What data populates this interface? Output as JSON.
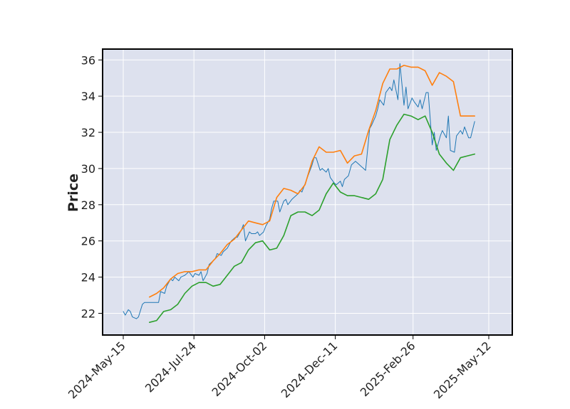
{
  "chart_data": {
    "type": "line",
    "title": "",
    "xlabel": "",
    "ylabel": "Price",
    "x_tick_labels": [
      "2024-May-15",
      "2024-Jul-24",
      "2024-Oct-02",
      "2024-Dec-11",
      "2025-Feb-26",
      "2025-May-12"
    ],
    "ylim": [
      20.8,
      36.6
    ],
    "y_ticks": [
      22,
      24,
      26,
      28,
      30,
      32,
      34,
      36
    ],
    "grid": true,
    "legend": "none",
    "plot_background": "#dde1ee",
    "series": [
      {
        "color": "#1f77b4",
        "stroke_width": 1,
        "points": [
          [
            "2024-05-15",
            22.1
          ],
          [
            "2024-05-17",
            21.9
          ],
          [
            "2024-05-20",
            22.2
          ],
          [
            "2024-05-22",
            22.1
          ],
          [
            "2024-05-24",
            21.8
          ],
          [
            "2024-05-28",
            21.7
          ],
          [
            "2024-05-30",
            21.8
          ],
          [
            "2024-06-03",
            22.5
          ],
          [
            "2024-06-05",
            22.6
          ],
          [
            "2024-06-07",
            22.6
          ],
          [
            "2024-06-11",
            22.6
          ],
          [
            "2024-06-13",
            22.6
          ],
          [
            "2024-06-17",
            22.6
          ],
          [
            "2024-06-19",
            22.6
          ],
          [
            "2024-06-21",
            23.2
          ],
          [
            "2024-06-25",
            23.1
          ],
          [
            "2024-06-27",
            23.5
          ],
          [
            "2024-07-01",
            23.9
          ],
          [
            "2024-07-03",
            23.8
          ],
          [
            "2024-07-05",
            24.0
          ],
          [
            "2024-07-09",
            23.8
          ],
          [
            "2024-07-11",
            24.0
          ],
          [
            "2024-07-15",
            24.1
          ],
          [
            "2024-07-17",
            24.2
          ],
          [
            "2024-07-19",
            24.3
          ],
          [
            "2024-07-23",
            24.0
          ],
          [
            "2024-07-25",
            24.2
          ],
          [
            "2024-07-29",
            24.1
          ],
          [
            "2024-07-31",
            24.3
          ],
          [
            "2024-08-02",
            23.8
          ],
          [
            "2024-08-06",
            24.2
          ],
          [
            "2024-08-08",
            24.7
          ],
          [
            "2024-08-12",
            24.9
          ],
          [
            "2024-08-14",
            25.0
          ],
          [
            "2024-08-16",
            25.3
          ],
          [
            "2024-08-20",
            25.2
          ],
          [
            "2024-08-22",
            25.4
          ],
          [
            "2024-08-26",
            25.6
          ],
          [
            "2024-08-28",
            25.8
          ],
          [
            "2024-08-30",
            26.0
          ],
          [
            "2024-09-03",
            26.2
          ],
          [
            "2024-09-05",
            26.2
          ],
          [
            "2024-09-09",
            26.6
          ],
          [
            "2024-09-11",
            26.9
          ],
          [
            "2024-09-13",
            26.0
          ],
          [
            "2024-09-17",
            26.5
          ],
          [
            "2024-09-19",
            26.4
          ],
          [
            "2024-09-23",
            26.4
          ],
          [
            "2024-09-25",
            26.5
          ],
          [
            "2024-09-27",
            26.3
          ],
          [
            "2024-10-01",
            26.5
          ],
          [
            "2024-10-03",
            26.8
          ],
          [
            "2024-10-07",
            27.2
          ],
          [
            "2024-10-09",
            27.8
          ],
          [
            "2024-10-11",
            28.2
          ],
          [
            "2024-10-15",
            28.2
          ],
          [
            "2024-10-17",
            27.6
          ],
          [
            "2024-10-21",
            28.2
          ],
          [
            "2024-10-23",
            28.3
          ],
          [
            "2024-10-25",
            28.0
          ],
          [
            "2024-10-29",
            28.3
          ],
          [
            "2024-10-31",
            28.4
          ],
          [
            "2024-11-04",
            28.6
          ],
          [
            "2024-11-06",
            28.8
          ],
          [
            "2024-11-08",
            28.7
          ],
          [
            "2024-11-12",
            29.3
          ],
          [
            "2024-11-14",
            29.6
          ],
          [
            "2024-11-18",
            30.2
          ],
          [
            "2024-11-20",
            30.6
          ],
          [
            "2024-11-22",
            30.6
          ],
          [
            "2024-11-26",
            29.9
          ],
          [
            "2024-11-28",
            30.0
          ],
          [
            "2024-12-02",
            29.8
          ],
          [
            "2024-12-04",
            30.0
          ],
          [
            "2024-12-06",
            29.5
          ],
          [
            "2024-12-10",
            29.2
          ],
          [
            "2024-12-12",
            29.1
          ],
          [
            "2024-12-16",
            29.3
          ],
          [
            "2024-12-18",
            29.0
          ],
          [
            "2024-12-20",
            29.4
          ],
          [
            "2024-12-24",
            29.6
          ],
          [
            "2024-12-27",
            30.2
          ],
          [
            "2024-12-31",
            30.4
          ],
          [
            "2025-01-02",
            30.3
          ],
          [
            "2025-01-06",
            30.1
          ],
          [
            "2025-01-08",
            30.0
          ],
          [
            "2025-01-10",
            29.9
          ],
          [
            "2025-01-14",
            32.2
          ],
          [
            "2025-01-16",
            32.4
          ],
          [
            "2025-01-20",
            32.9
          ],
          [
            "2025-01-22",
            33.3
          ],
          [
            "2025-01-24",
            33.8
          ],
          [
            "2025-01-28",
            33.5
          ],
          [
            "2025-01-30",
            34.2
          ],
          [
            "2025-02-03",
            34.5
          ],
          [
            "2025-02-05",
            34.3
          ],
          [
            "2025-02-07",
            34.9
          ],
          [
            "2025-02-11",
            33.8
          ],
          [
            "2025-02-13",
            35.8
          ],
          [
            "2025-02-17",
            33.5
          ],
          [
            "2025-02-19",
            34.5
          ],
          [
            "2025-02-21",
            33.3
          ],
          [
            "2025-02-25",
            33.9
          ],
          [
            "2025-02-27",
            33.7
          ],
          [
            "2025-03-03",
            33.4
          ],
          [
            "2025-03-05",
            33.8
          ],
          [
            "2025-03-07",
            33.3
          ],
          [
            "2025-03-11",
            34.2
          ],
          [
            "2025-03-13",
            34.2
          ],
          [
            "2025-03-17",
            31.3
          ],
          [
            "2025-03-19",
            32.0
          ],
          [
            "2025-03-21",
            31.0
          ],
          [
            "2025-03-25",
            31.8
          ],
          [
            "2025-03-27",
            32.1
          ],
          [
            "2025-03-31",
            31.7
          ],
          [
            "2025-04-02",
            32.9
          ],
          [
            "2025-04-04",
            31.0
          ],
          [
            "2025-04-08",
            30.9
          ],
          [
            "2025-04-10",
            31.8
          ],
          [
            "2025-04-14",
            32.1
          ],
          [
            "2025-04-16",
            31.9
          ],
          [
            "2025-04-18",
            32.3
          ],
          [
            "2025-04-22",
            31.7
          ],
          [
            "2025-04-24",
            31.7
          ],
          [
            "2025-04-28",
            32.6
          ]
        ]
      },
      {
        "color": "#ff7f0e",
        "stroke_width": 1.6,
        "points": [
          [
            "2024-06-10",
            22.9
          ],
          [
            "2024-06-17",
            23.1
          ],
          [
            "2024-06-24",
            23.4
          ],
          [
            "2024-07-01",
            23.9
          ],
          [
            "2024-07-08",
            24.2
          ],
          [
            "2024-07-15",
            24.3
          ],
          [
            "2024-07-22",
            24.3
          ],
          [
            "2024-07-29",
            24.4
          ],
          [
            "2024-08-05",
            24.4
          ],
          [
            "2024-08-12",
            24.9
          ],
          [
            "2024-08-19",
            25.3
          ],
          [
            "2024-08-26",
            25.8
          ],
          [
            "2024-09-02",
            26.1
          ],
          [
            "2024-09-09",
            26.6
          ],
          [
            "2024-09-16",
            27.1
          ],
          [
            "2024-09-23",
            27.0
          ],
          [
            "2024-09-30",
            26.9
          ],
          [
            "2024-10-07",
            27.1
          ],
          [
            "2024-10-14",
            28.4
          ],
          [
            "2024-10-21",
            28.9
          ],
          [
            "2024-10-28",
            28.8
          ],
          [
            "2024-11-04",
            28.6
          ],
          [
            "2024-11-11",
            29.1
          ],
          [
            "2024-11-18",
            30.4
          ],
          [
            "2024-11-25",
            31.2
          ],
          [
            "2024-12-02",
            30.9
          ],
          [
            "2024-12-09",
            30.9
          ],
          [
            "2024-12-16",
            31.0
          ],
          [
            "2024-12-23",
            30.3
          ],
          [
            "2024-12-30",
            30.7
          ],
          [
            "2025-01-06",
            30.8
          ],
          [
            "2025-01-13",
            32.1
          ],
          [
            "2025-01-20",
            33.2
          ],
          [
            "2025-01-27",
            34.7
          ],
          [
            "2025-02-03",
            35.5
          ],
          [
            "2025-02-10",
            35.5
          ],
          [
            "2025-02-17",
            35.7
          ],
          [
            "2025-02-24",
            35.6
          ],
          [
            "2025-03-03",
            35.6
          ],
          [
            "2025-03-10",
            35.4
          ],
          [
            "2025-03-17",
            34.6
          ],
          [
            "2025-03-24",
            35.3
          ],
          [
            "2025-03-31",
            35.1
          ],
          [
            "2025-04-07",
            34.8
          ],
          [
            "2025-04-14",
            32.9
          ],
          [
            "2025-04-21",
            32.9
          ],
          [
            "2025-04-28",
            32.9
          ]
        ]
      },
      {
        "color": "#2ca02c",
        "stroke_width": 1.6,
        "points": [
          [
            "2024-06-10",
            21.5
          ],
          [
            "2024-06-17",
            21.6
          ],
          [
            "2024-06-24",
            22.1
          ],
          [
            "2024-07-01",
            22.2
          ],
          [
            "2024-07-08",
            22.5
          ],
          [
            "2024-07-15",
            23.1
          ],
          [
            "2024-07-22",
            23.5
          ],
          [
            "2024-07-29",
            23.7
          ],
          [
            "2024-08-05",
            23.7
          ],
          [
            "2024-08-12",
            23.5
          ],
          [
            "2024-08-19",
            23.6
          ],
          [
            "2024-08-26",
            24.1
          ],
          [
            "2024-09-02",
            24.6
          ],
          [
            "2024-09-09",
            24.8
          ],
          [
            "2024-09-16",
            25.5
          ],
          [
            "2024-09-23",
            25.9
          ],
          [
            "2024-09-30",
            26.0
          ],
          [
            "2024-10-07",
            25.5
          ],
          [
            "2024-10-14",
            25.6
          ],
          [
            "2024-10-21",
            26.3
          ],
          [
            "2024-10-28",
            27.4
          ],
          [
            "2024-11-04",
            27.6
          ],
          [
            "2024-11-11",
            27.6
          ],
          [
            "2024-11-18",
            27.4
          ],
          [
            "2024-11-25",
            27.7
          ],
          [
            "2024-12-02",
            28.6
          ],
          [
            "2024-12-09",
            29.2
          ],
          [
            "2024-12-16",
            28.7
          ],
          [
            "2024-12-23",
            28.5
          ],
          [
            "2024-12-30",
            28.5
          ],
          [
            "2025-01-06",
            28.4
          ],
          [
            "2025-01-13",
            28.3
          ],
          [
            "2025-01-20",
            28.6
          ],
          [
            "2025-01-27",
            29.4
          ],
          [
            "2025-02-03",
            31.6
          ],
          [
            "2025-02-10",
            32.4
          ],
          [
            "2025-02-17",
            33.0
          ],
          [
            "2025-02-24",
            32.9
          ],
          [
            "2025-03-03",
            32.7
          ],
          [
            "2025-03-10",
            32.9
          ],
          [
            "2025-03-17",
            32.0
          ],
          [
            "2025-03-24",
            30.8
          ],
          [
            "2025-03-31",
            30.3
          ],
          [
            "2025-04-07",
            29.9
          ],
          [
            "2025-04-14",
            30.6
          ],
          [
            "2025-04-21",
            30.7
          ],
          [
            "2025-04-28",
            30.8
          ]
        ]
      }
    ]
  }
}
